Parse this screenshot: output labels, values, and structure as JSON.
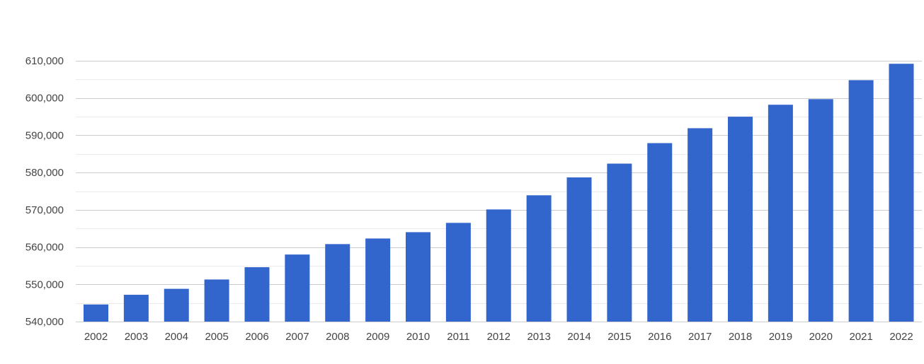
{
  "chart_data": {
    "type": "bar",
    "title": "",
    "xlabel": "",
    "ylabel": "",
    "categories": [
      "2002",
      "2003",
      "2004",
      "2005",
      "2006",
      "2007",
      "2008",
      "2009",
      "2010",
      "2011",
      "2012",
      "2013",
      "2014",
      "2015",
      "2016",
      "2017",
      "2018",
      "2019",
      "2020",
      "2021",
      "2022"
    ],
    "values": [
      544600,
      547200,
      548800,
      551300,
      554600,
      558000,
      560800,
      562300,
      564000,
      566500,
      570100,
      573900,
      578700,
      582400,
      587900,
      591900,
      595000,
      598200,
      599700,
      604800,
      609200
    ],
    "ylim": [
      540000,
      610000
    ],
    "yticks": [
      540000,
      550000,
      560000,
      570000,
      580000,
      590000,
      600000,
      610000
    ],
    "ytick_labels": [
      "540,000",
      "550,000",
      "560,000",
      "570,000",
      "580,000",
      "590,000",
      "600,000",
      "610,000"
    ],
    "grid": true,
    "bar_color": "#3366cc",
    "gridline_color": "#cccccc",
    "minor_gridline_color": "#ebebeb"
  }
}
